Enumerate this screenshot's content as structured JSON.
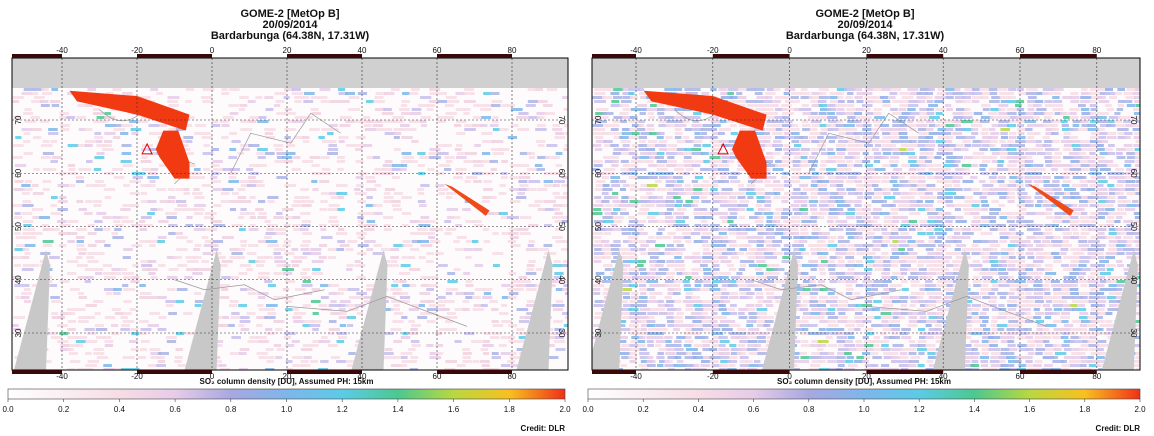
{
  "panels": [
    {
      "title": [
        "GOME-2 [MetOp B]",
        "20/09/2014",
        "Bardarbunga (64.38N, 17.31W)"
      ],
      "lon_ticks": [
        "-40",
        "-20",
        "0",
        "20",
        "40",
        "60",
        "80"
      ],
      "lat_ticks": [
        "30",
        "40",
        "50",
        "60",
        "70"
      ],
      "colorbar": {
        "label": "SO₂ column density [DU], Assumed PH: 15km",
        "ticks": [
          "0.0",
          "0.2",
          "0.4",
          "0.6",
          "0.8",
          "1.0",
          "1.2",
          "1.4",
          "1.6",
          "1.8",
          "2.0"
        ]
      },
      "credit": "Credit: DLR"
    },
    {
      "title": [
        "GOME-2 [MetOp B]",
        "20/09/2014",
        "Bardarbunga (64.38N, 17.31W)"
      ],
      "lon_ticks": [
        "-40",
        "-20",
        "0",
        "20",
        "40",
        "60",
        "80"
      ],
      "lat_ticks": [
        "30",
        "40",
        "50",
        "60",
        "70"
      ],
      "colorbar": {
        "label": "SO₂ column density [DU], Assumed PH: 15km",
        "ticks": [
          "0.0",
          "0.2",
          "0.4",
          "0.6",
          "0.8",
          "1.0",
          "1.2",
          "1.4",
          "1.6",
          "1.8",
          "2.0"
        ]
      },
      "credit": "Credit: DLR"
    }
  ]
}
